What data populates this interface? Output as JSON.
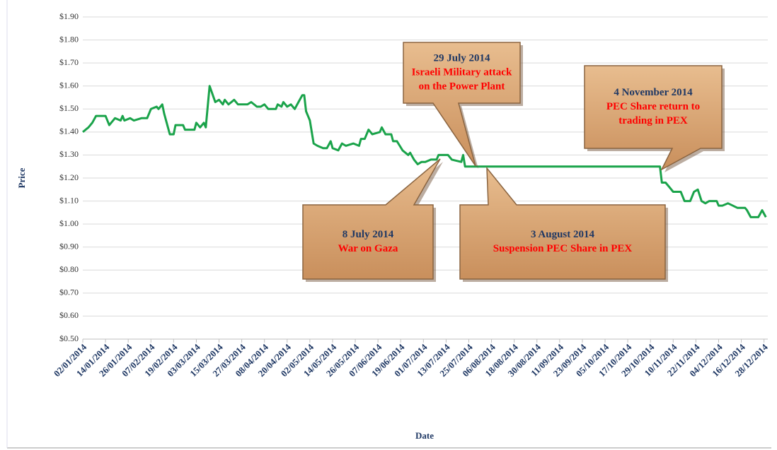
{
  "chart_data": {
    "type": "line",
    "xlabel": "Date",
    "ylabel": "Price",
    "ylim": [
      0.5,
      1.9
    ],
    "yticks": [
      {
        "value": 0.5,
        "label": "$0.50"
      },
      {
        "value": 0.6,
        "label": "$0.60"
      },
      {
        "value": 0.7,
        "label": "$0.70"
      },
      {
        "value": 0.8,
        "label": "$0.80"
      },
      {
        "value": 0.9,
        "label": "$0.90"
      },
      {
        "value": 1.0,
        "label": "$1.00"
      },
      {
        "value": 1.1,
        "label": "$1.10"
      },
      {
        "value": 1.2,
        "label": "$1.20"
      },
      {
        "value": 1.3,
        "label": "$1.30"
      },
      {
        "value": 1.4,
        "label": "$1.40"
      },
      {
        "value": 1.5,
        "label": "$1.50"
      },
      {
        "value": 1.6,
        "label": "$1.60"
      },
      {
        "value": 1.7,
        "label": "$1.70"
      },
      {
        "value": 1.8,
        "label": "$1.80"
      },
      {
        "value": 1.9,
        "label": "$1.90"
      }
    ],
    "xlim": [
      "02/01/2014",
      "30/12/2014"
    ],
    "xticks": [
      "02/01/2014",
      "14/01/2014",
      "26/01/2014",
      "07/02/2014",
      "19/02/2014",
      "03/03/2014",
      "15/03/2014",
      "27/03/2014",
      "08/04/2014",
      "20/04/2014",
      "02/05/2014",
      "14/05/2014",
      "26/05/2014",
      "07/06/2014",
      "19/06/2014",
      "01/07/2014",
      "13/07/2014",
      "25/07/2014",
      "06/08/2014",
      "18/08/2014",
      "30/08/2014",
      "11/09/2014",
      "23/09/2014",
      "05/10/2014",
      "17/10/2014",
      "29/10/2014",
      "10/11/2014",
      "22/11/2014",
      "04/12/2014",
      "16/12/2014",
      "28/12/2014"
    ],
    "grid": true,
    "series": [
      {
        "color": "#1aa34a",
        "x": [
          "02/01/2014",
          "05/01/2014",
          "07/01/2014",
          "09/01/2014",
          "14/01/2014",
          "16/01/2014",
          "19/01/2014",
          "22/01/2014",
          "23/01/2014",
          "24/01/2014",
          "27/01/2014",
          "29/01/2014",
          "02/02/2014",
          "05/02/2014",
          "07/02/2014",
          "10/02/2014",
          "11/02/2014",
          "13/02/2014",
          "14/02/2014",
          "17/02/2014",
          "19/02/2014",
          "20/02/2014",
          "24/02/2014",
          "25/02/2014",
          "02/03/2014",
          "03/03/2014",
          "05/03/2014",
          "07/03/2014",
          "08/03/2014",
          "10/03/2014",
          "13/03/2014",
          "15/03/2014",
          "17/03/2014",
          "18/03/2014",
          "20/03/2014",
          "23/03/2014",
          "25/03/2014",
          "30/03/2014",
          "01/04/2014",
          "04/04/2014",
          "06/04/2014",
          "08/04/2014",
          "10/04/2014",
          "14/04/2014",
          "15/04/2014",
          "17/04/2014",
          "18/04/2014",
          "20/04/2014",
          "22/04/2014",
          "24/04/2014",
          "26/04/2014",
          "28/04/2014",
          "29/04/2014",
          "30/04/2014",
          "02/05/2014",
          "04/05/2014",
          "06/05/2014",
          "09/05/2014",
          "11/05/2014",
          "13/05/2014",
          "14/05/2014",
          "17/05/2014",
          "19/05/2014",
          "21/05/2014",
          "25/05/2014",
          "28/05/2014",
          "29/05/2014",
          "31/05/2014",
          "02/06/2014",
          "04/06/2014",
          "08/06/2014",
          "09/06/2014",
          "11/06/2014",
          "14/06/2014",
          "15/06/2014",
          "17/06/2014",
          "20/06/2014",
          "23/06/2014",
          "24/06/2014",
          "26/06/2014",
          "28/06/2014",
          "30/06/2014",
          "02/07/2014",
          "05/07/2014",
          "08/07/2014",
          "09/07/2014",
          "13/07/2014",
          "14/07/2014",
          "16/07/2014",
          "21/07/2014",
          "22/07/2014",
          "23/07/2014",
          "03/11/2014",
          "04/11/2014",
          "06/11/2014",
          "08/11/2014",
          "10/11/2014",
          "14/11/2014",
          "16/11/2014",
          "19/11/2014",
          "21/11/2014",
          "23/11/2014",
          "25/11/2014",
          "27/11/2014",
          "29/11/2014",
          "03/12/2014",
          "04/12/2014",
          "06/12/2014",
          "09/12/2014",
          "14/12/2014",
          "18/12/2014",
          "19/12/2014",
          "21/12/2014",
          "25/12/2014",
          "27/12/2014",
          "29/12/2014"
        ],
        "values": [
          1.4,
          1.42,
          1.44,
          1.47,
          1.47,
          1.43,
          1.46,
          1.45,
          1.47,
          1.45,
          1.46,
          1.45,
          1.46,
          1.46,
          1.5,
          1.51,
          1.5,
          1.52,
          1.48,
          1.39,
          1.39,
          1.43,
          1.43,
          1.41,
          1.41,
          1.44,
          1.42,
          1.44,
          1.42,
          1.6,
          1.53,
          1.54,
          1.52,
          1.54,
          1.52,
          1.54,
          1.52,
          1.52,
          1.53,
          1.51,
          1.51,
          1.52,
          1.5,
          1.5,
          1.52,
          1.51,
          1.53,
          1.51,
          1.52,
          1.5,
          1.53,
          1.56,
          1.56,
          1.49,
          1.45,
          1.35,
          1.34,
          1.33,
          1.33,
          1.36,
          1.33,
          1.32,
          1.35,
          1.34,
          1.35,
          1.34,
          1.37,
          1.37,
          1.41,
          1.39,
          1.4,
          1.42,
          1.39,
          1.39,
          1.36,
          1.36,
          1.32,
          1.3,
          1.31,
          1.28,
          1.26,
          1.27,
          1.27,
          1.28,
          1.28,
          1.3,
          1.3,
          1.3,
          1.28,
          1.27,
          1.3,
          1.25,
          1.25,
          1.18,
          1.18,
          1.16,
          1.14,
          1.14,
          1.1,
          1.1,
          1.14,
          1.15,
          1.1,
          1.09,
          1.1,
          1.1,
          1.08,
          1.08,
          1.09,
          1.07,
          1.07,
          1.06,
          1.03,
          1.03,
          1.06,
          1.03
        ]
      }
    ],
    "annotations": [
      {
        "title": "29 July 2014",
        "text": [
          "Israeli Military attack",
          "on the Power Plant"
        ]
      },
      {
        "title": "4 November 2014",
        "text": [
          "PEC Share return to",
          "trading in PEX"
        ]
      },
      {
        "title": "8 July 2014",
        "text": [
          "War on Gaza"
        ]
      },
      {
        "title": "3 August 2014",
        "text": [
          "Suspension PEC Share in PEX"
        ]
      }
    ]
  }
}
